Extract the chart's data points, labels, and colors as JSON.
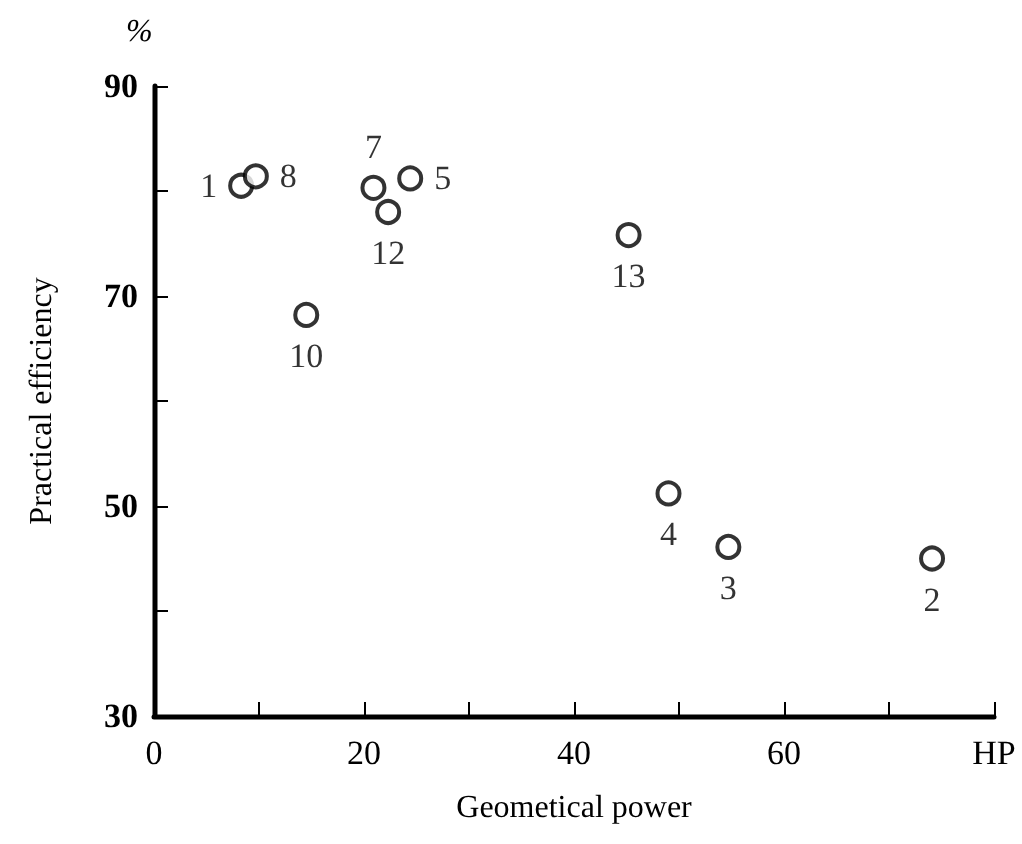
{
  "chart_data": {
    "type": "scatter",
    "xlabel": "Geometical power",
    "ylabel": "Practical efficiency",
    "x": [
      8.3,
      9.7,
      20.9,
      22.3,
      24.4,
      14.5,
      45.2,
      49,
      54.7,
      74.1
    ],
    "values": [
      80.5,
      81.4,
      80.3,
      78,
      81.2,
      68.2,
      75.8,
      51.2,
      46.1,
      45
    ],
    "color": "#000000",
    "marker": "circle",
    "grid": false,
    "xlim": [
      0,
      80
    ],
    "xticks": [
      0,
      {
        "value": 10,
        "label": null
      },
      20,
      {
        "value": 30,
        "label": null
      },
      40,
      {
        "value": 50,
        "label": null
      },
      60,
      {
        "value": 70,
        "label": null
      },
      {
        "value": 80,
        "label": "HP"
      }
    ],
    "ylim": [
      30,
      90
    ],
    "yticks": [
      30,
      {
        "value": 40,
        "label": null
      },
      50,
      {
        "value": 60,
        "label": null
      },
      70,
      {
        "value": 80,
        "label": null
      },
      90
    ],
    "annotations": [
      "%",
      {
        "text": "1",
        "x": 8.3,
        "y": 80.5
      },
      {
        "text": "8",
        "x": 9.7,
        "y": 81.4
      },
      {
        "text": "7",
        "x": 20.9,
        "y": 80.3
      },
      {
        "text": "12",
        "x": 22.3,
        "y": 78
      },
      {
        "text": "5",
        "x": 24.4,
        "y": 81.2
      },
      {
        "text": "10",
        "x": 14.5,
        "y": 68.2
      },
      {
        "text": "13",
        "x": 45.2,
        "y": 75.8
      },
      {
        "text": "4",
        "x": 49,
        "y": 51.2
      },
      {
        "text": "3",
        "x": 54.7,
        "y": 46.1
      },
      {
        "text": "2",
        "x": 74.1,
        "y": 45
      }
    ]
  }
}
